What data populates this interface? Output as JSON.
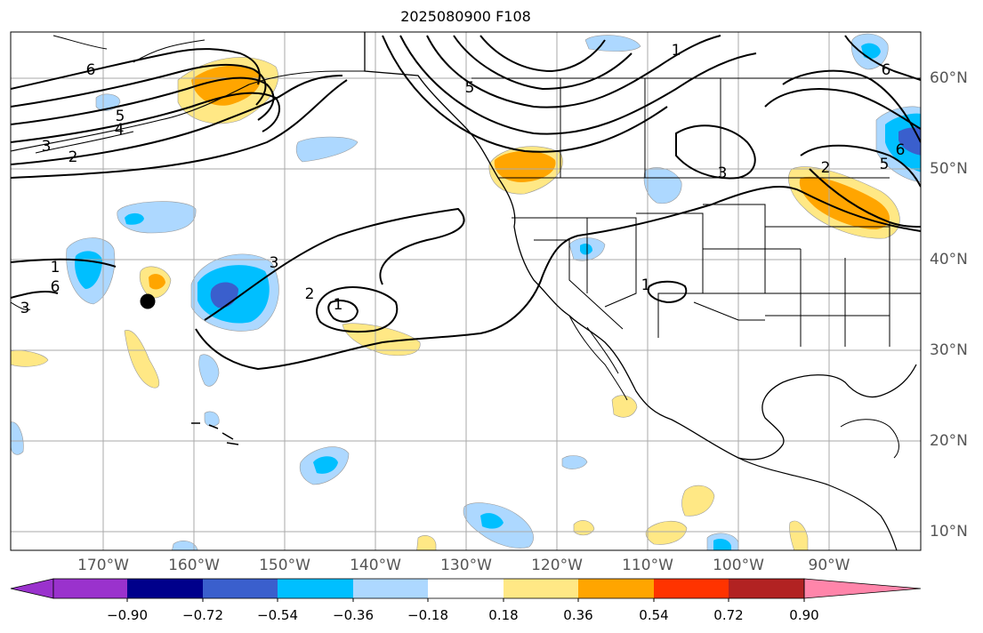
{
  "title": "2025080900 F108",
  "map": {
    "longitude_labels": [
      "170°W",
      "160°W",
      "150°W",
      "140°W",
      "130°W",
      "120°W",
      "110°W",
      "100°W",
      "90°W"
    ],
    "latitude_labels": [
      "60°N",
      "50°N",
      "40°N",
      "30°N",
      "20°N",
      "10°N"
    ],
    "contour_labels": [
      "6",
      "5",
      "4",
      "3",
      "2",
      "1",
      "6",
      "5",
      "1",
      "3",
      "2",
      "1",
      "3",
      "2",
      "3",
      "1",
      "5",
      "6",
      "6"
    ],
    "marker": "black-dot"
  },
  "colorbar": {
    "tick_labels": [
      "−0.90",
      "−0.72",
      "−0.54",
      "−0.36",
      "−0.18",
      "0.18",
      "0.36",
      "0.54",
      "0.72",
      "0.90"
    ],
    "colors": [
      "#9a32cd",
      "#00008b",
      "#3a5fcd",
      "#00bfff",
      "#add8ff",
      "#ffffff",
      "#ffe885",
      "#ffa500",
      "#ff3300",
      "#b22222",
      "#ff85aa"
    ]
  }
}
